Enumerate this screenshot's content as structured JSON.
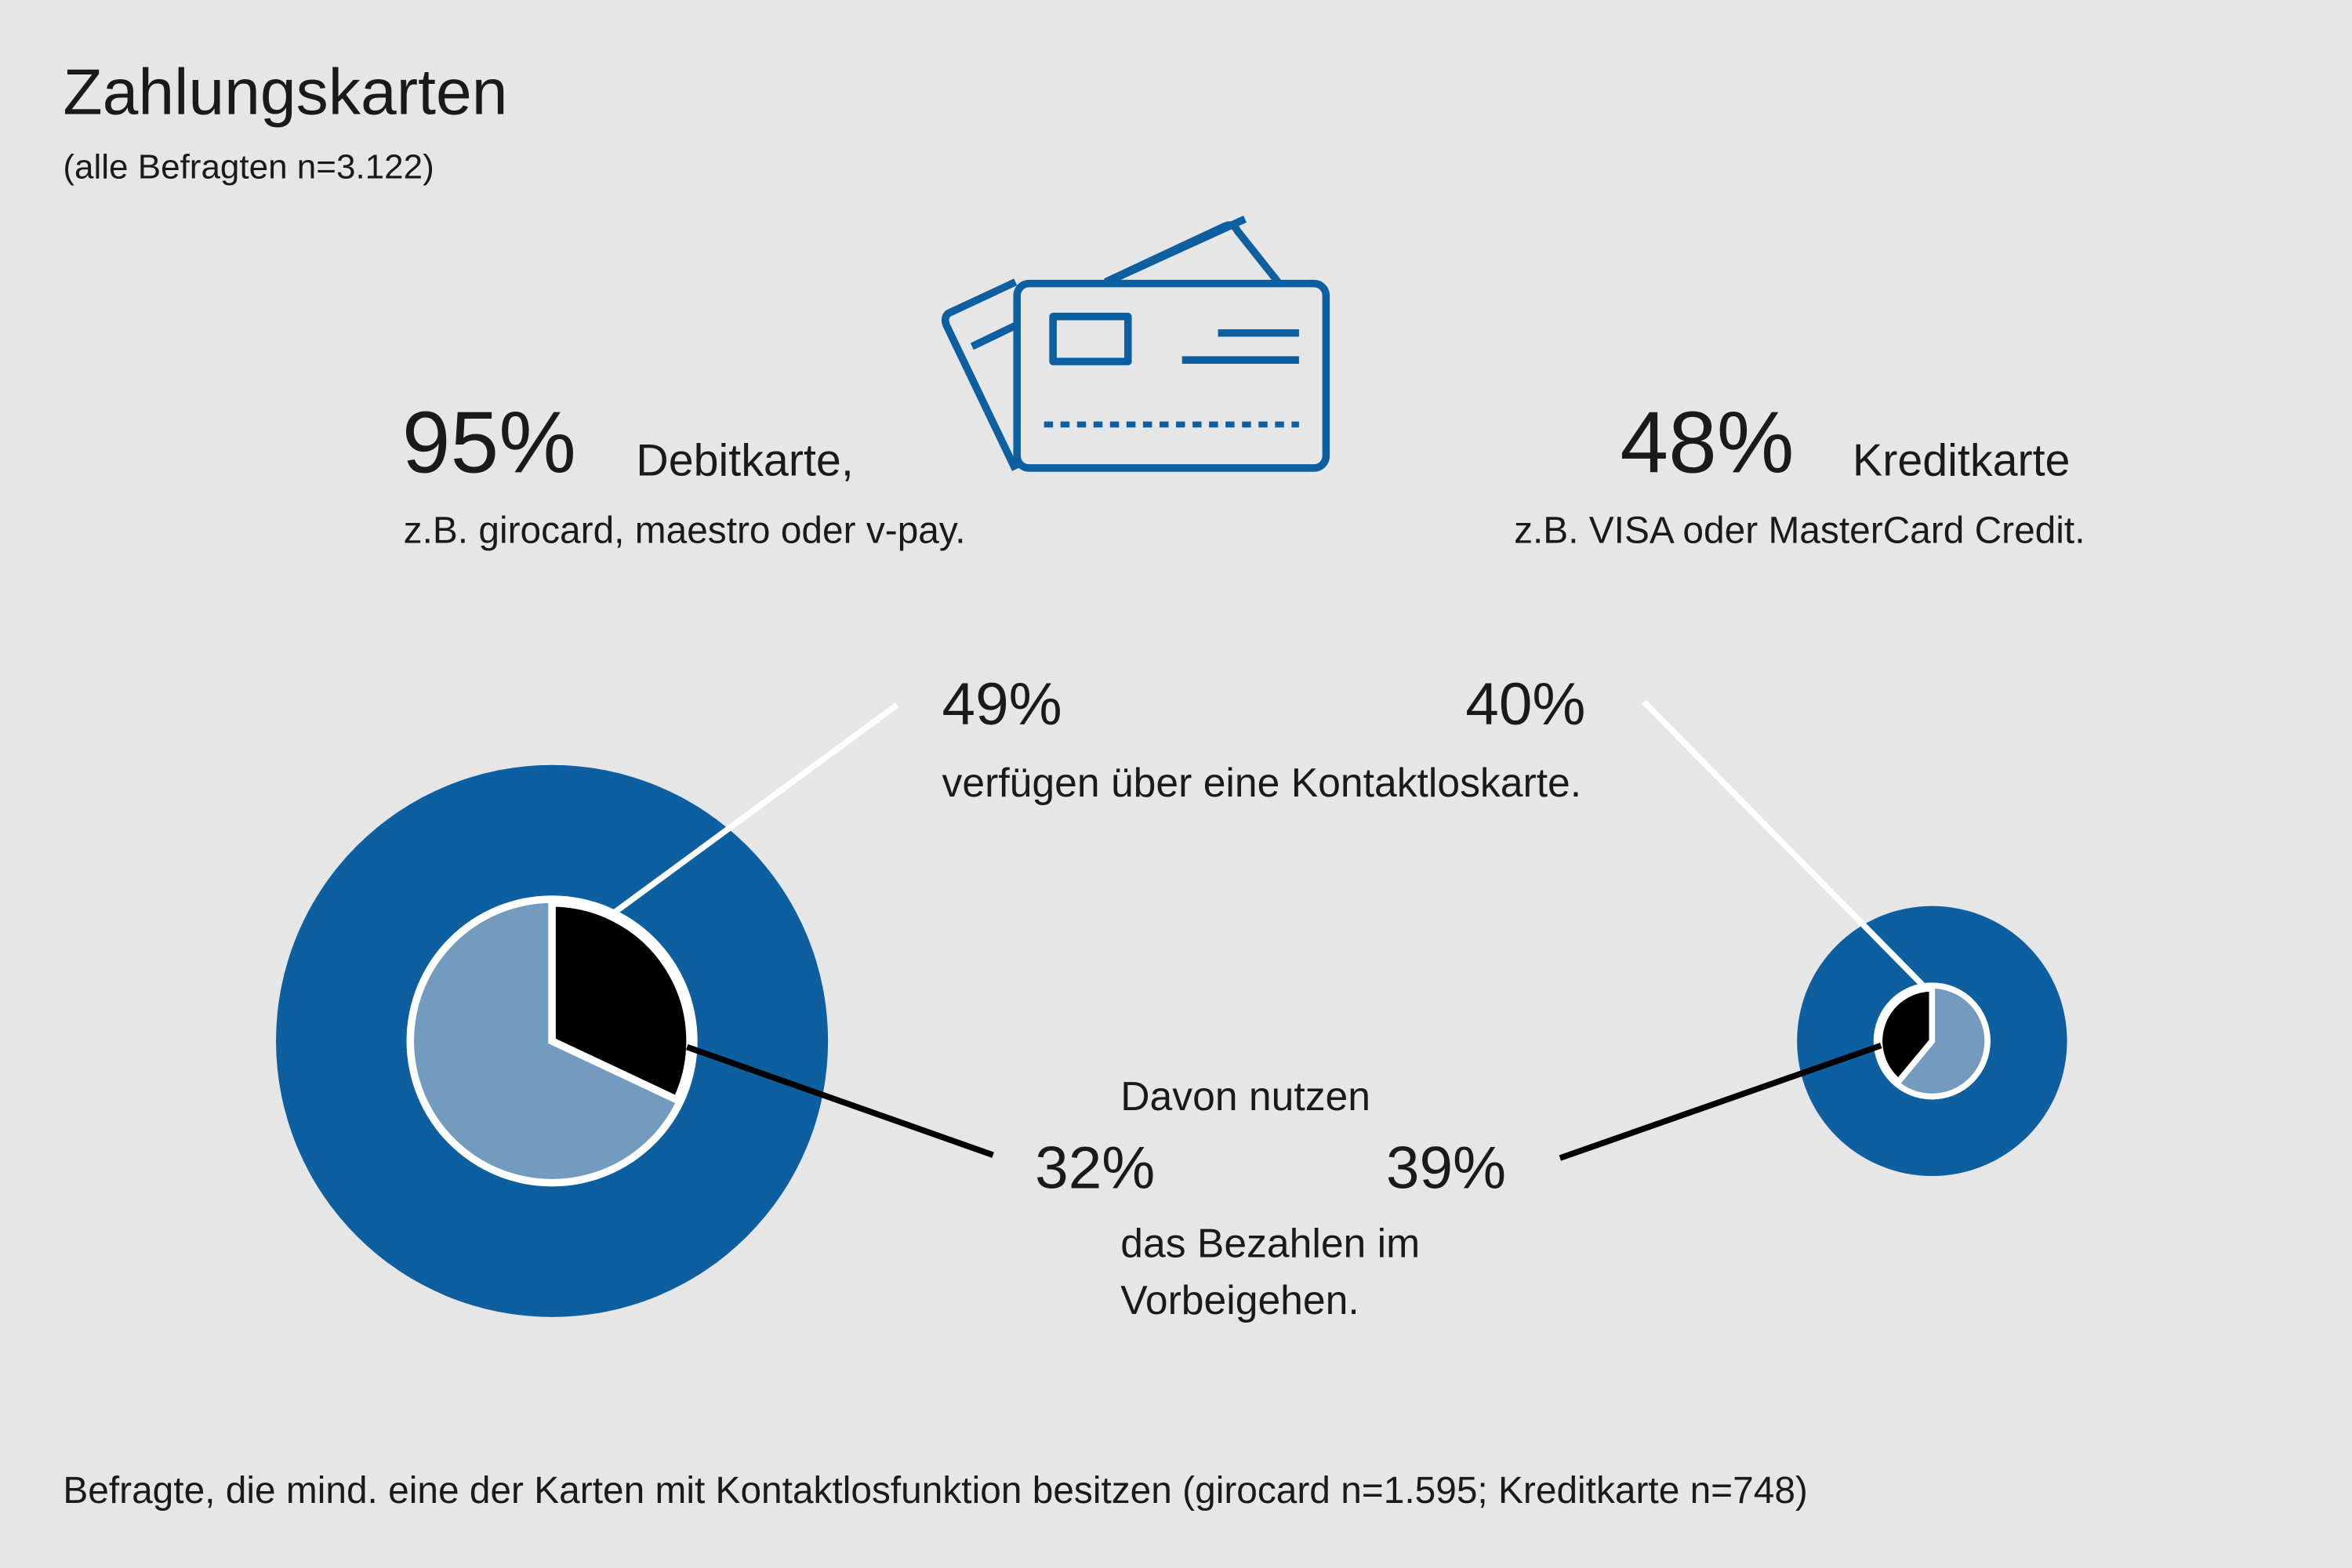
{
  "header": {
    "title": "Zahlungskarten",
    "subtitle": "(alle Befragten n=3.122)"
  },
  "debit": {
    "percent": "95%",
    "label": "Debitkarte,",
    "examples": "z.B. girocard, maestro oder v-pay."
  },
  "credit": {
    "percent": "48%",
    "label": "Kreditkarte",
    "examples": "z.B. VISA oder MasterCard Credit."
  },
  "contactless": {
    "debit_percent": "49%",
    "credit_percent": "40%",
    "text": "verfügen über eine Kontaktloskarte."
  },
  "usage": {
    "intro": "Davon nutzen",
    "debit_percent": "32%",
    "credit_percent": "39%",
    "line1": "das Bezahlen im",
    "line2": "Vorbeigehen."
  },
  "footnote": "Befragte, die mind. eine der Karten mit Kontaktlosfunktion besitzen (girocard n=1.595; Kreditkarte n=748)",
  "colors": {
    "outer": "#0d5fa0",
    "inner": "#739bbf",
    "use": "#000000",
    "icon": "#0d5fa0",
    "bg": "#e6e6e6"
  },
  "chart_data": {
    "type": "pie",
    "title": "Zahlungskarten",
    "series": [
      {
        "name": "Debitkarte",
        "ownership_percent": 95,
        "contactless_percent": 49,
        "contactless_use_percent": 32
      },
      {
        "name": "Kreditkarte",
        "ownership_percent": 48,
        "contactless_percent": 40,
        "contactless_use_percent": 39
      }
    ]
  }
}
